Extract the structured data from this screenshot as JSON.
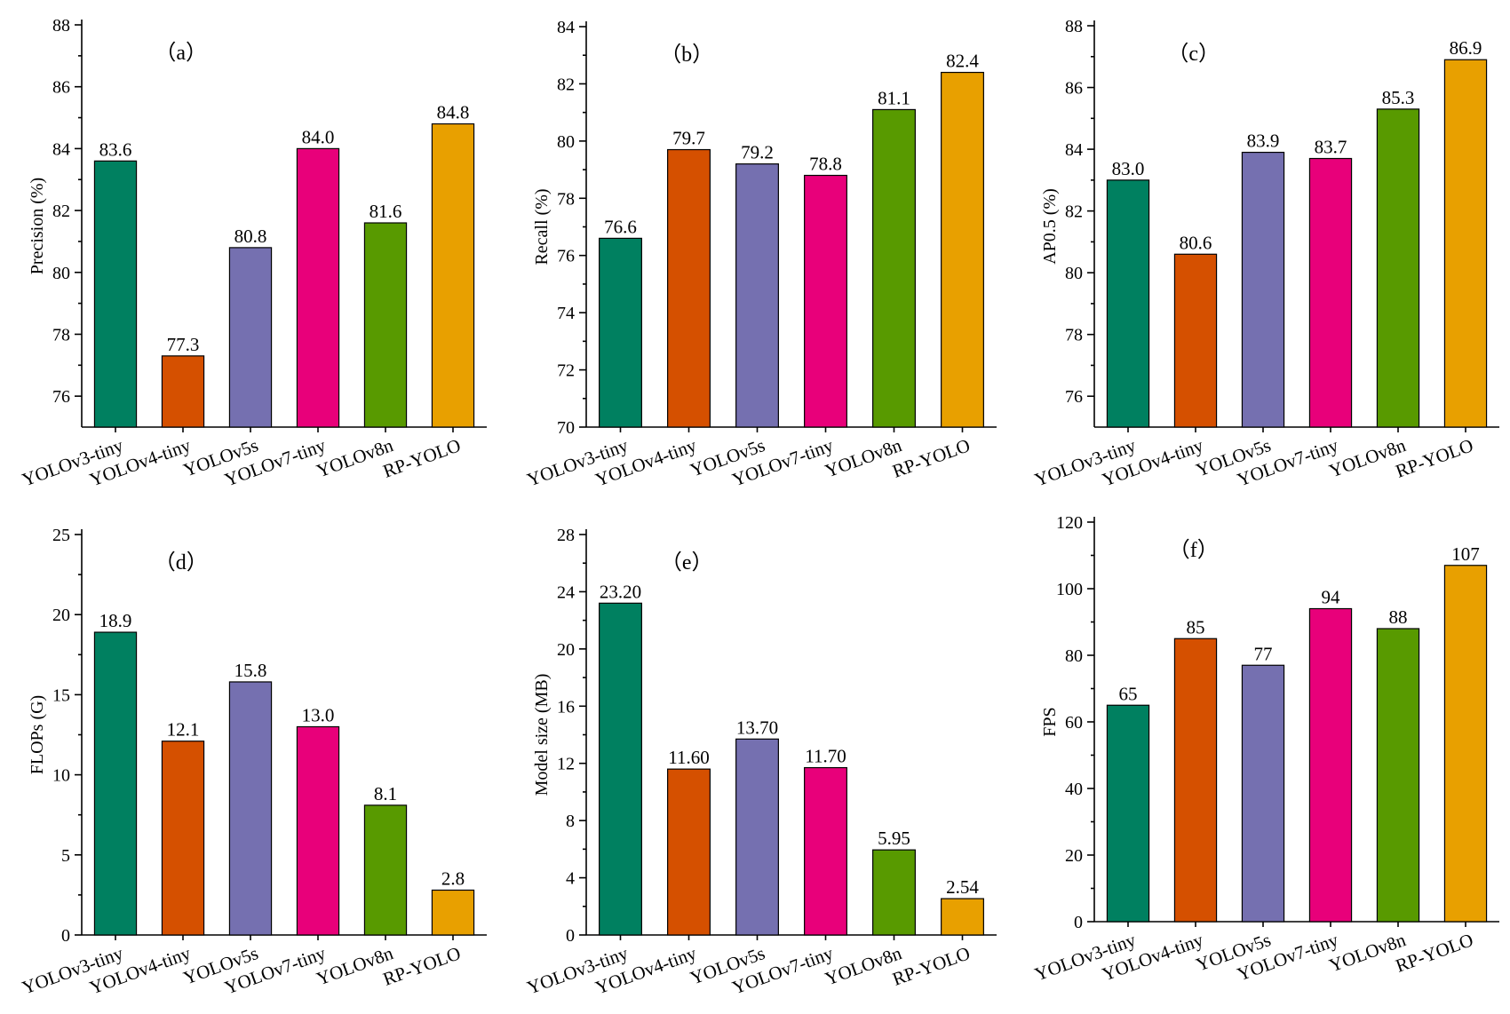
{
  "chart_data": [
    {
      "type": "bar",
      "panel_tag": "（a）",
      "ylabel": "Precision (%)",
      "categories": [
        "YOLOv3-tiny",
        "YOLOv4-tiny",
        "YOLOv5s",
        "YOLOv7-tiny",
        "YOLOv8n",
        "RP-YOLO"
      ],
      "values": [
        83.6,
        77.3,
        80.8,
        84.0,
        81.6,
        84.8
      ],
      "value_labels": [
        "83.6",
        "77.3",
        "80.8",
        "84.0",
        "81.6",
        "84.8"
      ],
      "ylim": [
        75,
        88
      ],
      "yticks": [
        76,
        78,
        80,
        82,
        84,
        86,
        88
      ],
      "ytick_labels": [
        "76",
        "78",
        "80",
        "82",
        "84",
        "86",
        "88"
      ]
    },
    {
      "type": "bar",
      "panel_tag": "（b）",
      "ylabel": "Recall (%)",
      "categories": [
        "YOLOv3-tiny",
        "YOLOv4-tiny",
        "YOLOv5s",
        "YOLOv7-tiny",
        "YOLOv8n",
        "RP-YOLO"
      ],
      "values": [
        76.6,
        79.7,
        79.2,
        78.8,
        81.1,
        82.4
      ],
      "value_labels": [
        "76.6",
        "79.7",
        "79.2",
        "78.8",
        "81.1",
        "82.4"
      ],
      "ylim": [
        70,
        84
      ],
      "yticks": [
        70,
        72,
        74,
        76,
        78,
        80,
        82,
        84
      ],
      "ytick_labels": [
        "70",
        "72",
        "74",
        "76",
        "78",
        "80",
        "82",
        "84"
      ]
    },
    {
      "type": "bar",
      "panel_tag": "（c）",
      "ylabel": "AP0.5 (%)",
      "categories": [
        "YOLOv3-tiny",
        "YOLOv4-tiny",
        "YOLOv5s",
        "YOLOv7-tiny",
        "YOLOv8n",
        "RP-YOLO"
      ],
      "values": [
        83.0,
        80.6,
        83.9,
        83.7,
        85.3,
        86.9
      ],
      "value_labels": [
        "83.0",
        "80.6",
        "83.9",
        "83.7",
        "85.3",
        "86.9"
      ],
      "ylim": [
        75,
        88
      ],
      "yticks": [
        76,
        78,
        80,
        82,
        84,
        86,
        88
      ],
      "ytick_labels": [
        "76",
        "78",
        "80",
        "82",
        "84",
        "86",
        "88"
      ]
    },
    {
      "type": "bar",
      "panel_tag": "（d）",
      "ylabel": "FLOPs (G)",
      "categories": [
        "YOLOv3-tiny",
        "YOLOv4-tiny",
        "YOLOv5s",
        "YOLOv7-tiny",
        "YOLOv8n",
        "RP-YOLO"
      ],
      "values": [
        18.9,
        12.1,
        15.8,
        13.0,
        8.1,
        2.8
      ],
      "value_labels": [
        "18.9",
        "12.1",
        "15.8",
        "13.0",
        "8.1",
        "2.8"
      ],
      "ylim": [
        0,
        25
      ],
      "yticks": [
        0,
        5,
        10,
        15,
        20,
        25
      ],
      "ytick_labels": [
        "0",
        "5",
        "10",
        "15",
        "20",
        "25"
      ]
    },
    {
      "type": "bar",
      "panel_tag": "（e）",
      "ylabel": "Model size (MB)",
      "categories": [
        "YOLOv3-tiny",
        "YOLOv4-tiny",
        "YOLOv5s",
        "YOLOv7-tiny",
        "YOLOv8n",
        "RP-YOLO"
      ],
      "values": [
        23.2,
        11.6,
        13.7,
        11.7,
        5.95,
        2.54
      ],
      "value_labels": [
        "23.20",
        "11.60",
        "13.70",
        "11.70",
        "5.95",
        "2.54"
      ],
      "ylim": [
        0,
        28
      ],
      "yticks": [
        0,
        4,
        8,
        12,
        16,
        20,
        24,
        28
      ],
      "ytick_labels": [
        "0",
        "4",
        "8",
        "12",
        "16",
        "20",
        "24",
        "28"
      ]
    },
    {
      "type": "bar",
      "panel_tag": "（f）",
      "ylabel": "FPS",
      "categories": [
        "YOLOv3-tiny",
        "YOLOv4-tiny",
        "YOLOv5s",
        "YOLOv7-tiny",
        "YOLOv8n",
        "RP-YOLO"
      ],
      "values": [
        65,
        85,
        77,
        94,
        88,
        107
      ],
      "value_labels": [
        "65",
        "85",
        "77",
        "94",
        "88",
        "107"
      ],
      "ylim": [
        0,
        120
      ],
      "yticks": [
        0,
        20,
        40,
        60,
        80,
        100,
        120
      ],
      "ytick_labels": [
        "0",
        "20",
        "40",
        "60",
        "80",
        "100",
        "120"
      ]
    }
  ],
  "colors": [
    "#008060",
    "#d55000",
    "#7570b0",
    "#e8007a",
    "#589a00",
    "#e8a000"
  ],
  "grid": false,
  "legend": "none"
}
